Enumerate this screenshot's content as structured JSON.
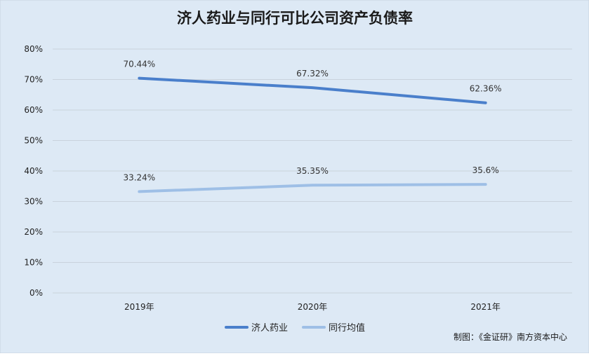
{
  "chart_data": {
    "type": "line",
    "title": "济人药业与同行可比公司资产负债率",
    "categories": [
      "2019年",
      "2020年",
      "2021年"
    ],
    "series": [
      {
        "name": "济人药业",
        "values": [
          70.44,
          67.32,
          62.36
        ],
        "labels": [
          "70.44%",
          "67.32%",
          "62.36%"
        ],
        "color": "#4a7fcb"
      },
      {
        "name": "同行均值",
        "values": [
          33.24,
          35.35,
          35.6
        ],
        "labels": [
          "33.24%",
          "35.35%",
          "35.6%"
        ],
        "color": "#9ebfe6"
      }
    ],
    "ylim": [
      0,
      80
    ],
    "yticks": [
      0,
      10,
      20,
      30,
      40,
      50,
      60,
      70,
      80
    ],
    "ytick_labels": [
      "0%",
      "10%",
      "20%",
      "30%",
      "40%",
      "50%",
      "60%",
      "70%",
      "80%"
    ],
    "grid": true,
    "legend": "bottom-center",
    "source": "制图：《金证研》南方资本中心",
    "background": "#dde9f5"
  }
}
